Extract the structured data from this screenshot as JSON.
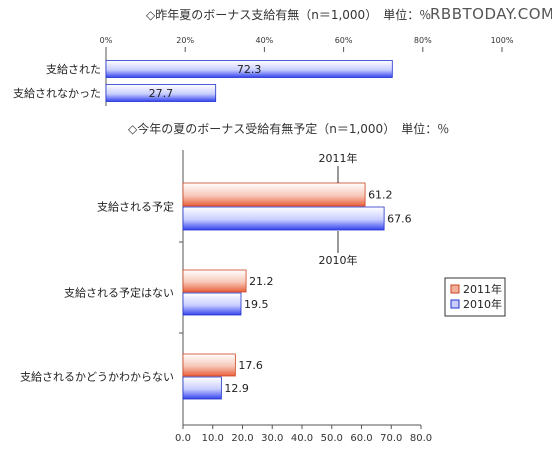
{
  "watermark": "RBBTODAY.COM",
  "chart_data": [
    {
      "type": "bar",
      "orientation": "horizontal",
      "title": "◇昨年夏のボーナス支給有無（n＝1,000）　単位：％",
      "categories": [
        "支給された",
        "支給されなかった"
      ],
      "series": [
        {
          "values": [
            72.3,
            27.7
          ]
        }
      ],
      "ticks": [
        "0%",
        "20%",
        "40%",
        "60%",
        "80%",
        "100%"
      ],
      "xlim": [
        0,
        100
      ],
      "color": "#3344ee"
    },
    {
      "type": "bar",
      "orientation": "horizontal",
      "title": "◇今年の夏のボーナス受給有無予定（n＝1,000）　単位：％",
      "categories": [
        "支給される予定",
        "支給される予定はない",
        "支給されるかどうかわからない"
      ],
      "series": [
        {
          "name": "2011年",
          "values": [
            61.2,
            21.2,
            17.6
          ],
          "color": "#e8603c"
        },
        {
          "name": "2010年",
          "values": [
            67.6,
            19.5,
            12.9
          ],
          "color": "#3344ee"
        }
      ],
      "annotations": {
        "series_0": "2011年",
        "series_1": "2010年"
      },
      "ticks": [
        "0.0",
        "10.0",
        "20.0",
        "30.0",
        "40.0",
        "50.0",
        "60.0",
        "70.0",
        "80.0"
      ],
      "xlim": [
        0,
        80
      ],
      "legend": "right"
    }
  ]
}
